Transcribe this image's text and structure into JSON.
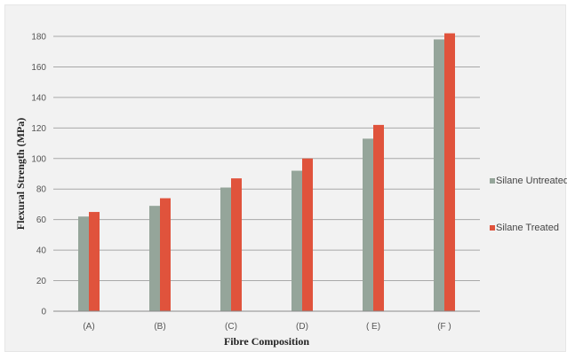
{
  "chart_data": {
    "type": "bar",
    "categories": [
      "(A)",
      "(B)",
      "(C)",
      "(D)",
      "( E)",
      "(F )"
    ],
    "series": [
      {
        "name": "Silane Untreated",
        "color": "#95a59a",
        "values": [
          62,
          69,
          81,
          92,
          113,
          178
        ]
      },
      {
        "name": "Silane Treated",
        "color": "#e0533c",
        "values": [
          65,
          74,
          87,
          100,
          122,
          182
        ]
      }
    ],
    "xlabel": "Fibre Composition",
    "ylabel": "Flexural Strength (MPa)",
    "ylim": [
      0,
      180
    ],
    "yticks": [
      0,
      20,
      40,
      60,
      80,
      100,
      120,
      140,
      160,
      180
    ],
    "grid": true,
    "legend_position": "right"
  }
}
